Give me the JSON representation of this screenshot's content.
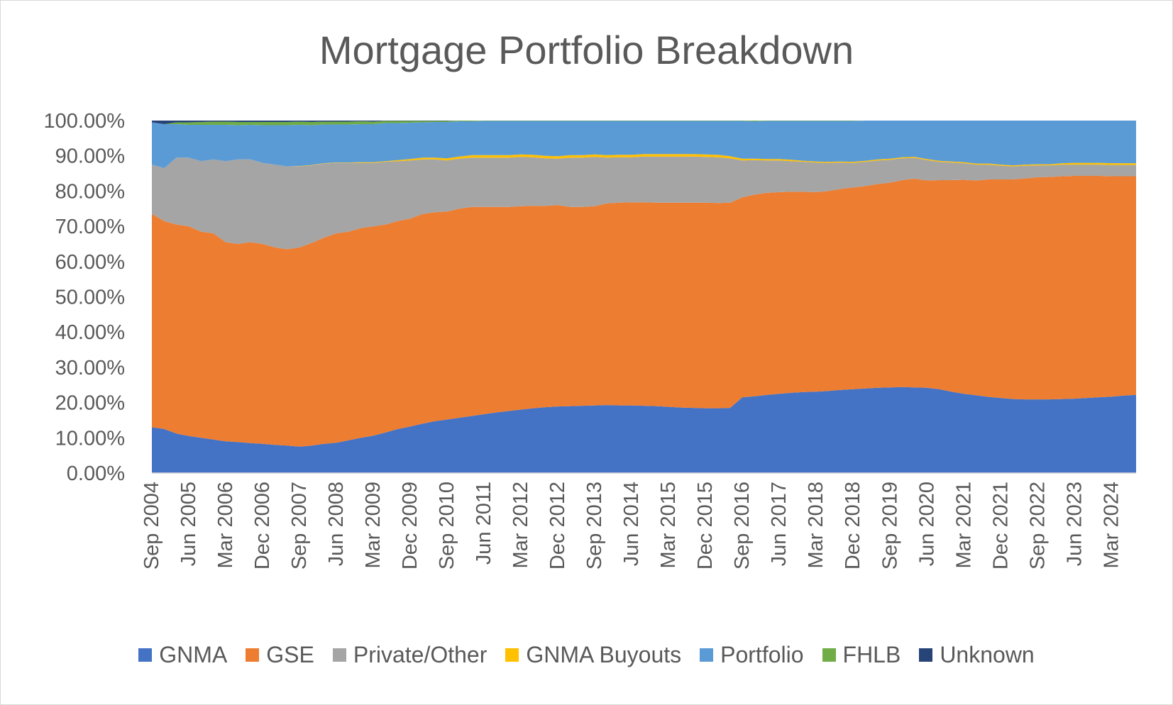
{
  "chart_data": {
    "type": "area",
    "stacked": true,
    "title": "Mortgage Portfolio Breakdown",
    "xlabel": "",
    "ylabel": "",
    "ylim": [
      0,
      100
    ],
    "y_tick_labels": [
      "0.00%",
      "10.00%",
      "20.00%",
      "30.00%",
      "40.00%",
      "50.00%",
      "60.00%",
      "70.00%",
      "80.00%",
      "90.00%",
      "100.00%"
    ],
    "grid": false,
    "legend_position": "bottom",
    "x_tick_labels": [
      "Sep 2004",
      "Jun 2005",
      "Mar 2006",
      "Dec 2006",
      "Sep 2007",
      "Jun 2008",
      "Mar 2009",
      "Dec 2009",
      "Sep 2010",
      "Jun 2011",
      "Mar 2012",
      "Dec 2012",
      "Sep 2013",
      "Jun 2014",
      "Mar 2015",
      "Dec 2015",
      "Sep 2016",
      "Jun 2017",
      "Mar 2018",
      "Dec 2018",
      "Sep 2019",
      "Jun 2020",
      "Mar 2021",
      "Dec 2021",
      "Sep 2022",
      "Jun 2023",
      "Mar 2024"
    ],
    "x": [
      "Sep 2004",
      "Dec 2004",
      "Mar 2005",
      "Jun 2005",
      "Sep 2005",
      "Dec 2005",
      "Mar 2006",
      "Jun 2006",
      "Sep 2006",
      "Dec 2006",
      "Mar 2007",
      "Jun 2007",
      "Sep 2007",
      "Dec 2007",
      "Mar 2008",
      "Jun 2008",
      "Sep 2008",
      "Dec 2008",
      "Mar 2009",
      "Jun 2009",
      "Sep 2009",
      "Dec 2009",
      "Mar 2010",
      "Jun 2010",
      "Sep 2010",
      "Dec 2010",
      "Mar 2011",
      "Jun 2011",
      "Sep 2011",
      "Dec 2011",
      "Mar 2012",
      "Jun 2012",
      "Sep 2012",
      "Dec 2012",
      "Mar 2013",
      "Jun 2013",
      "Sep 2013",
      "Dec 2013",
      "Mar 2014",
      "Jun 2014",
      "Sep 2014",
      "Dec 2014",
      "Mar 2015",
      "Jun 2015",
      "Sep 2015",
      "Dec 2015",
      "Mar 2016",
      "Jun 2016",
      "Sep 2016",
      "Dec 2016",
      "Mar 2017",
      "Jun 2017",
      "Sep 2017",
      "Dec 2017",
      "Mar 2018",
      "Jun 2018",
      "Sep 2018",
      "Dec 2018",
      "Mar 2019",
      "Jun 2019",
      "Sep 2019",
      "Dec 2019",
      "Mar 2020",
      "Jun 2020",
      "Sep 2020",
      "Dec 2020",
      "Mar 2021",
      "Jun 2021",
      "Sep 2021",
      "Dec 2021",
      "Mar 2022",
      "Jun 2022",
      "Sep 2022",
      "Dec 2022",
      "Mar 2023",
      "Jun 2023",
      "Sep 2023",
      "Dec 2023",
      "Mar 2024",
      "Jun 2024",
      "Sep 2024"
    ],
    "series": [
      {
        "name": "GNMA",
        "color": "#4472c4",
        "values": [
          13.0,
          12.5,
          11.2,
          10.5,
          10.0,
          9.5,
          9.0,
          8.8,
          8.5,
          8.3,
          8.0,
          7.8,
          7.5,
          7.8,
          8.3,
          8.6,
          9.3,
          10.0,
          10.6,
          11.5,
          12.5,
          13.2,
          14.0,
          14.7,
          15.2,
          15.7,
          16.2,
          16.7,
          17.2,
          17.6,
          18.0,
          18.4,
          18.7,
          18.9,
          19.0,
          19.1,
          19.2,
          19.3,
          19.2,
          19.2,
          19.1,
          19.0,
          18.8,
          18.6,
          18.5,
          18.4,
          18.4,
          18.5,
          21.5,
          21.8,
          22.2,
          22.5,
          22.8,
          23.0,
          23.1,
          23.3,
          23.6,
          23.8,
          24.0,
          24.2,
          24.3,
          24.4,
          24.3,
          24.2,
          23.8,
          23.1,
          22.5,
          22.1,
          21.6,
          21.3,
          21.0,
          20.9,
          20.9,
          20.9,
          21.0,
          21.1,
          21.3,
          21.5,
          21.7,
          22.0,
          22.2
        ]
      },
      {
        "name": "GSE",
        "color": "#ed7d31",
        "values": [
          60.5,
          59.0,
          59.3,
          59.5,
          58.5,
          58.5,
          56.5,
          56.2,
          57.0,
          56.7,
          56.0,
          55.7,
          56.5,
          57.5,
          58.5,
          59.4,
          59.2,
          59.5,
          59.4,
          59.0,
          59.0,
          59.0,
          59.5,
          59.3,
          59.0,
          59.3,
          59.3,
          58.8,
          58.3,
          57.9,
          57.7,
          57.4,
          57.1,
          57.1,
          56.5,
          56.4,
          56.5,
          57.2,
          57.5,
          57.6,
          57.7,
          57.7,
          57.9,
          58.1,
          58.2,
          58.3,
          58.2,
          58.2,
          56.7,
          57.2,
          57.3,
          57.2,
          57.0,
          56.8,
          56.6,
          56.7,
          57.0,
          57.2,
          57.4,
          57.8,
          58.1,
          58.7,
          59.2,
          58.8,
          59.3,
          60.0,
          60.7,
          60.9,
          61.7,
          62.0,
          62.3,
          62.7,
          63.0,
          63.1,
          63.2,
          63.2,
          63.0,
          62.8,
          62.5,
          62.2,
          62.0
        ]
      },
      {
        "name": "Private/Other",
        "color": "#a5a5a5",
        "values": [
          14.0,
          15.0,
          19.0,
          19.5,
          20.0,
          21.0,
          23.0,
          24.0,
          23.5,
          23.0,
          23.5,
          23.5,
          23.0,
          22.0,
          21.0,
          20.0,
          19.5,
          18.5,
          18.0,
          17.8,
          17.0,
          16.5,
          15.5,
          15.0,
          14.5,
          14.2,
          14.0,
          14.0,
          14.0,
          14.0,
          14.0,
          13.8,
          13.5,
          13.2,
          14.0,
          14.0,
          14.0,
          13.0,
          12.9,
          12.8,
          13.0,
          13.1,
          13.1,
          13.1,
          13.1,
          13.0,
          13.0,
          12.6,
          10.5,
          9.8,
          9.2,
          9.0,
          8.7,
          8.5,
          8.4,
          8.0,
          7.5,
          7.0,
          6.9,
          6.7,
          6.5,
          6.2,
          5.9,
          5.8,
          5.2,
          5.0,
          4.7,
          4.5,
          4.2,
          3.9,
          3.7,
          3.6,
          3.4,
          3.3,
          3.3,
          3.2,
          3.2,
          3.2,
          3.2,
          3.2,
          3.2
        ]
      },
      {
        "name": "GNMA Buyouts",
        "color": "#ffc000",
        "values": [
          0.0,
          0.0,
          0.0,
          0.0,
          0.0,
          0.0,
          0.0,
          0.0,
          0.0,
          0.0,
          0.0,
          0.0,
          0.1,
          0.1,
          0.1,
          0.1,
          0.1,
          0.2,
          0.2,
          0.2,
          0.3,
          0.4,
          0.5,
          0.5,
          0.6,
          0.6,
          0.7,
          0.7,
          0.7,
          0.7,
          0.7,
          0.7,
          0.7,
          0.7,
          0.7,
          0.7,
          0.7,
          0.7,
          0.7,
          0.7,
          0.7,
          0.7,
          0.7,
          0.7,
          0.7,
          0.7,
          0.7,
          0.6,
          0.5,
          0.4,
          0.4,
          0.4,
          0.4,
          0.3,
          0.3,
          0.3,
          0.3,
          0.3,
          0.3,
          0.3,
          0.3,
          0.3,
          0.3,
          0.3,
          0.3,
          0.3,
          0.3,
          0.3,
          0.3,
          0.3,
          0.3,
          0.3,
          0.3,
          0.3,
          0.4,
          0.5,
          0.5,
          0.5,
          0.5,
          0.5,
          0.5
        ]
      },
      {
        "name": "Portfolio",
        "color": "#5b9bd5",
        "values": [
          12.0,
          12.5,
          9.5,
          9.3,
          10.3,
          9.8,
          10.3,
          9.7,
          9.8,
          10.7,
          11.2,
          11.7,
          11.7,
          11.3,
          11.0,
          10.8,
          10.8,
          10.8,
          10.8,
          10.8,
          10.5,
          10.3,
          10.0,
          10.1,
          10.3,
          10.0,
          9.6,
          9.7,
          9.7,
          9.7,
          9.5,
          9.6,
          9.9,
          10.0,
          9.7,
          9.7,
          9.5,
          9.7,
          9.6,
          9.6,
          9.4,
          9.4,
          9.4,
          9.4,
          9.4,
          9.5,
          9.6,
          10.0,
          10.7,
          10.6,
          10.8,
          10.8,
          11.0,
          11.3,
          11.5,
          11.6,
          11.5,
          11.6,
          11.4,
          11.0,
          10.8,
          10.4,
          10.3,
          10.9,
          11.4,
          11.6,
          11.8,
          12.2,
          12.2,
          12.5,
          12.7,
          12.5,
          12.4,
          12.4,
          12.1,
          12.0,
          12.0,
          12.0,
          12.1,
          12.1,
          12.1
        ]
      },
      {
        "name": "FHLB",
        "color": "#70ad47",
        "values": [
          0.0,
          0.0,
          0.5,
          0.7,
          0.8,
          0.9,
          0.9,
          0.9,
          0.8,
          0.9,
          0.9,
          0.9,
          0.9,
          0.9,
          0.8,
          0.8,
          0.8,
          0.8,
          0.7,
          0.6,
          0.6,
          0.5,
          0.4,
          0.3,
          0.3,
          0.2,
          0.2,
          0.1,
          0.1,
          0.1,
          0.1,
          0.1,
          0.1,
          0.1,
          0.1,
          0.1,
          0.1,
          0.1,
          0.1,
          0.1,
          0.1,
          0.1,
          0.1,
          0.1,
          0.1,
          0.1,
          0.1,
          0.1,
          0.1,
          0.2,
          0.1,
          0.1,
          0.1,
          0.1,
          0.1,
          0.1,
          0.1,
          0.1,
          0.0,
          0.0,
          0.0,
          0.0,
          0.0,
          0.0,
          0.0,
          0.0,
          0.0,
          0.0,
          0.0,
          0.0,
          0.0,
          0.0,
          0.0,
          0.0,
          0.0,
          0.0,
          0.0,
          0.0,
          0.0,
          0.0,
          0.0
        ]
      },
      {
        "name": "Unknown",
        "color": "#264478",
        "values": [
          0.5,
          1.0,
          0.5,
          0.5,
          0.4,
          0.3,
          0.3,
          0.4,
          0.4,
          0.4,
          0.4,
          0.4,
          0.3,
          0.4,
          0.3,
          0.3,
          0.3,
          0.2,
          0.3,
          0.1,
          0.1,
          0.1,
          0.1,
          0.1,
          0.1,
          0.0,
          0.0,
          0.0,
          0.0,
          0.0,
          0.0,
          0.0,
          0.0,
          0.0,
          0.0,
          0.0,
          0.0,
          0.0,
          0.0,
          0.0,
          0.0,
          0.0,
          0.0,
          0.0,
          0.0,
          0.0,
          0.0,
          0.0,
          0.0,
          0.0,
          0.0,
          0.0,
          0.0,
          0.0,
          0.0,
          0.0,
          0.0,
          0.0,
          0.0,
          0.0,
          0.0,
          0.0,
          0.0,
          0.0,
          0.0,
          0.0,
          0.0,
          0.0,
          0.0,
          0.0,
          0.0,
          0.0,
          0.0,
          0.0,
          0.0,
          0.0,
          0.0,
          0.0,
          0.0,
          0.0,
          0.0
        ]
      }
    ]
  }
}
